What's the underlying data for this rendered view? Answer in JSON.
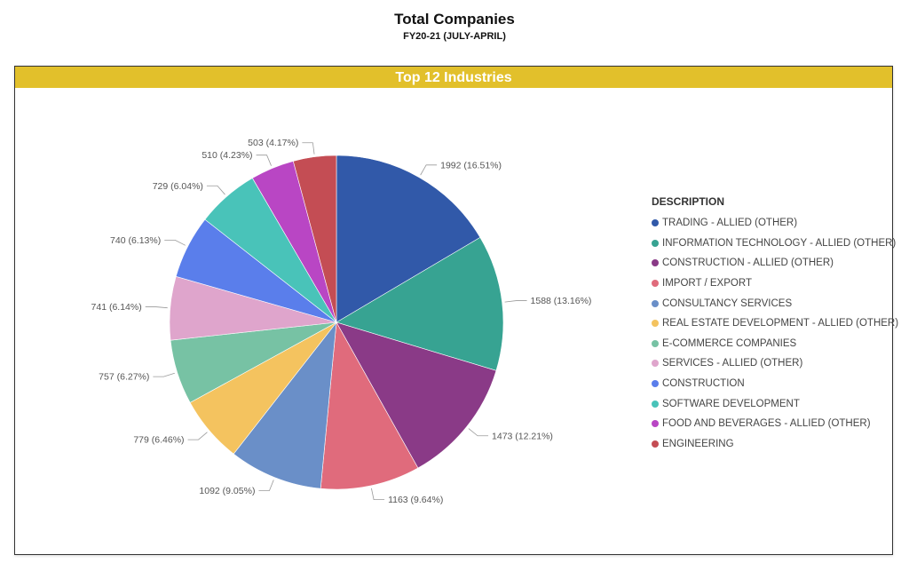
{
  "header": {
    "title": "Total Companies",
    "subtitle": "FY20-21 (JULY-APRIL)"
  },
  "panel": {
    "title": "Top 12 Industries",
    "header_color": "#E2C02B"
  },
  "legend": {
    "title": "DESCRIPTION"
  },
  "chart_data": {
    "type": "pie",
    "title": "Top 12 Industries",
    "legend_placement": "right",
    "slices": [
      {
        "label": "TRADING - ALLIED (OTHER)",
        "value": 1992,
        "percent": 16.51,
        "display": "1992 (16.51%)",
        "color": "#3159A9"
      },
      {
        "label": "INFORMATION TECHNOLOGY - ALLIED (OTHER)",
        "value": 1588,
        "percent": 13.16,
        "display": "1588 (13.16%)",
        "color": "#37A392"
      },
      {
        "label": "CONSTRUCTION - ALLIED (OTHER)",
        "value": 1473,
        "percent": 12.21,
        "display": "1473 (12.21%)",
        "color": "#8A3A87"
      },
      {
        "label": "IMPORT / EXPORT",
        "value": 1163,
        "percent": 9.64,
        "display": "1163 (9.64%)",
        "color": "#E06B7C"
      },
      {
        "label": "CONSULTANCY SERVICES",
        "value": 1092,
        "percent": 9.05,
        "display": "1092 (9.05%)",
        "color": "#6A8FC8"
      },
      {
        "label": "REAL ESTATE DEVELOPMENT - ALLIED (OTHER)",
        "value": 779,
        "percent": 6.46,
        "display": "779 (6.46%)",
        "color": "#F4C35F"
      },
      {
        "label": "E-COMMERCE COMPANIES",
        "value": 757,
        "percent": 6.27,
        "display": "757 (6.27%)",
        "color": "#77C2A4"
      },
      {
        "label": "SERVICES - ALLIED (OTHER)",
        "value": 741,
        "percent": 6.14,
        "display": "741 (6.14%)",
        "color": "#DFA5CC"
      },
      {
        "label": "CONSTRUCTION",
        "value": 740,
        "percent": 6.13,
        "display": "740 (6.13%)",
        "color": "#5A7EEB"
      },
      {
        "label": "SOFTWARE DEVELOPMENT",
        "value": 729,
        "percent": 6.04,
        "display": "729 (6.04%)",
        "color": "#49C3B9"
      },
      {
        "label": "FOOD AND BEVERAGES - ALLIED (OTHER)",
        "value": 510,
        "percent": 4.23,
        "display": "510 (4.23%)",
        "color": "#B946C4"
      },
      {
        "label": "ENGINEERING",
        "value": 503,
        "percent": 4.17,
        "display": "503 (4.17%)",
        "color": "#C44D54"
      }
    ]
  }
}
